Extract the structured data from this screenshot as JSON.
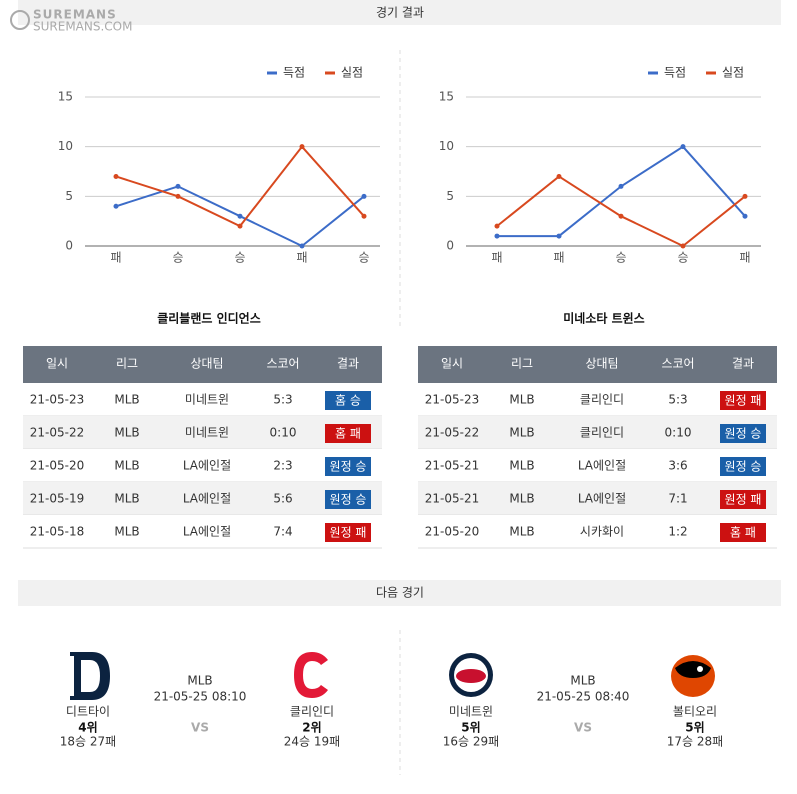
{
  "logo": {
    "name": "SUREMANS",
    "url": "SUREMANS.COM"
  },
  "results_header": "경기 결과",
  "chart_data": [
    {
      "type": "line",
      "categories": [
        "패",
        "승",
        "승",
        "패",
        "승"
      ],
      "series": [
        {
          "name": "득점",
          "color": "#3c6cc8",
          "values": [
            4,
            6,
            3,
            0,
            5
          ]
        },
        {
          "name": "실점",
          "color": "#d8491f",
          "values": [
            7,
            5,
            2,
            10,
            3
          ]
        }
      ],
      "ylim": [
        0,
        15
      ],
      "yticks": [
        0,
        5,
        10,
        15
      ],
      "grid": true,
      "legend": "top-right"
    },
    {
      "type": "line",
      "categories": [
        "패",
        "패",
        "승",
        "승",
        "패"
      ],
      "series": [
        {
          "name": "득점",
          "color": "#3c6cc8",
          "values": [
            1,
            1,
            6,
            10,
            3
          ]
        },
        {
          "name": "실점",
          "color": "#d8491f",
          "values": [
            2,
            7,
            3,
            0,
            5
          ]
        }
      ],
      "ylim": [
        0,
        15
      ],
      "yticks": [
        0,
        5,
        10,
        15
      ],
      "grid": true,
      "legend": "top-right"
    }
  ],
  "columns": [
    "일시",
    "리그",
    "상대팀",
    "스코어",
    "결과"
  ],
  "teams": [
    {
      "name": "클리블랜드 인디언스",
      "rows": [
        {
          "date": "21-05-23",
          "league": "MLB",
          "opponent": "미네트윈",
          "score": "5:3",
          "result": "홈 승",
          "result_color": "#1a5fa8"
        },
        {
          "date": "21-05-22",
          "league": "MLB",
          "opponent": "미네트윈",
          "score": "0:10",
          "result": "홈 패",
          "result_color": "#cc1111"
        },
        {
          "date": "21-05-20",
          "league": "MLB",
          "opponent": "LA에인절",
          "score": "2:3",
          "result": "원정 승",
          "result_color": "#1a5fa8"
        },
        {
          "date": "21-05-19",
          "league": "MLB",
          "opponent": "LA에인절",
          "score": "5:6",
          "result": "원정 승",
          "result_color": "#1a5fa8"
        },
        {
          "date": "21-05-18",
          "league": "MLB",
          "opponent": "LA에인절",
          "score": "7:4",
          "result": "원정 패",
          "result_color": "#cc1111"
        }
      ]
    },
    {
      "name": "미네소타 트윈스",
      "rows": [
        {
          "date": "21-05-23",
          "league": "MLB",
          "opponent": "클리인디",
          "score": "5:3",
          "result": "원정 패",
          "result_color": "#cc1111"
        },
        {
          "date": "21-05-22",
          "league": "MLB",
          "opponent": "클리인디",
          "score": "0:10",
          "result": "원정 승",
          "result_color": "#1a5fa8"
        },
        {
          "date": "21-05-21",
          "league": "MLB",
          "opponent": "LA에인절",
          "score": "3:6",
          "result": "원정 승",
          "result_color": "#1a5fa8"
        },
        {
          "date": "21-05-21",
          "league": "MLB",
          "opponent": "LA에인절",
          "score": "7:1",
          "result": "원정 패",
          "result_color": "#cc1111"
        },
        {
          "date": "21-05-20",
          "league": "MLB",
          "opponent": "시카화이",
          "score": "1:2",
          "result": "홈 패",
          "result_color": "#cc1111"
        }
      ]
    }
  ],
  "next_header": "다음 경기",
  "next_games": [
    {
      "league": "MLB",
      "time": "21-05-25 08:10",
      "vs": "VS",
      "home": {
        "name": "디트타이",
        "rank": "4위",
        "record": "18승 27패"
      },
      "away": {
        "name": "클리인디",
        "rank": "2위",
        "record": "24승 19패"
      }
    },
    {
      "league": "MLB",
      "time": "21-05-25 08:40",
      "vs": "VS",
      "home": {
        "name": "미네트윈",
        "rank": "5위",
        "record": "16승 29패"
      },
      "away": {
        "name": "볼티오리",
        "rank": "5위",
        "record": "17승 28패"
      }
    }
  ]
}
